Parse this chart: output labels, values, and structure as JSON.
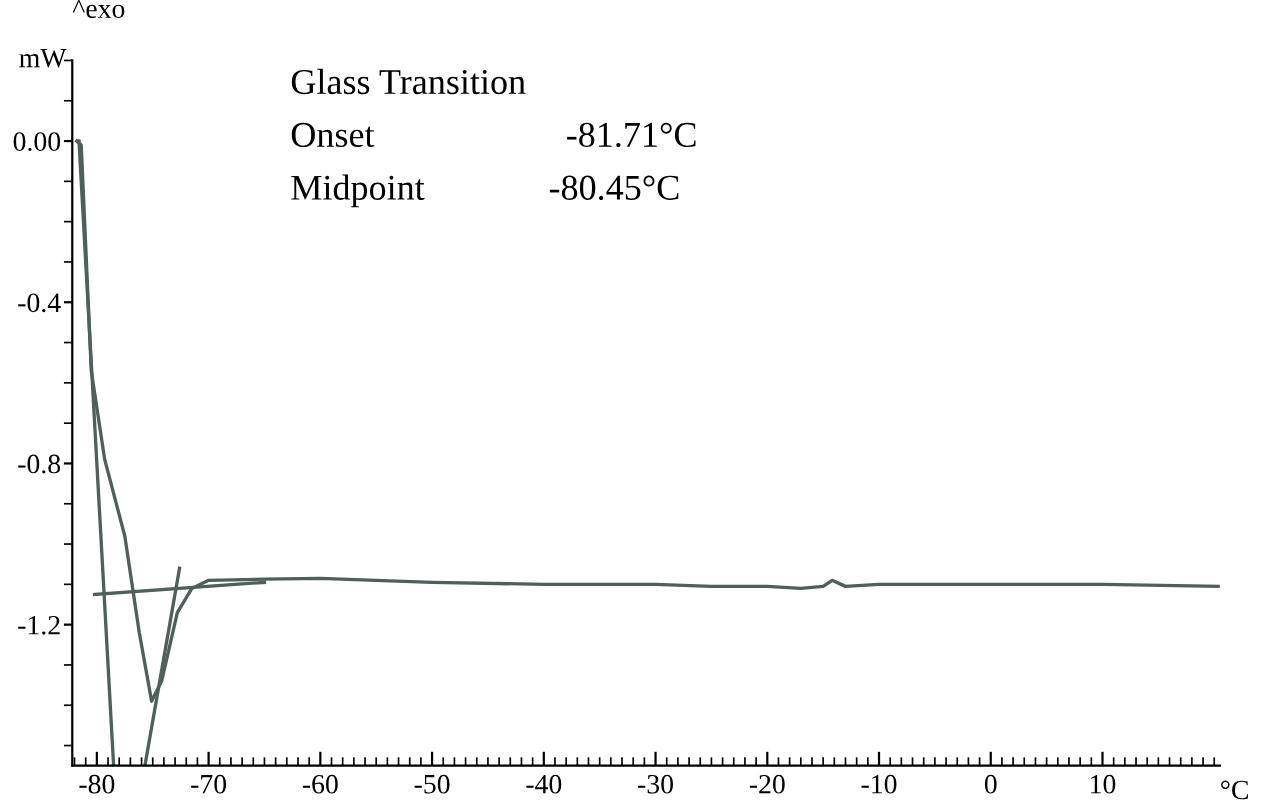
{
  "chart_data": {
    "type": "line",
    "xlabel": "°C",
    "ylabel": "mW",
    "title": "^exo",
    "xlim": [
      -82.2,
      20.5
    ],
    "xticks": [
      -80,
      -70,
      -60,
      -50,
      -40,
      -30,
      -20,
      -10,
      0,
      10
    ],
    "ylim": [
      -1.55,
      0.2
    ],
    "yticks": [
      {
        "value": 0,
        "label": "0.00"
      },
      -0.4,
      -0.8,
      -1.2
    ],
    "grid": false,
    "legend": false,
    "marker": "none",
    "line_style": "solid",
    "annotations": [
      "Glass Transition",
      "Onset",
      "-81.71°C",
      "Midpoint",
      "-80.45°C"
    ],
    "series": [
      {
        "color": "#4f5f5c",
        "x": [
          -81.8,
          -81.4,
          -80.5,
          -79.3,
          -77.5,
          -76.2,
          -75.1,
          -74.2,
          -72.8,
          -71.5,
          -70,
          -65,
          -60,
          -50,
          -40,
          -30,
          -25,
          -20,
          -17,
          -15,
          -14.2,
          -13,
          -10,
          0,
          10,
          20.5
        ],
        "values": [
          0.0,
          -0.01,
          -0.57,
          -0.79,
          -0.98,
          -1.22,
          -1.39,
          -1.34,
          -1.17,
          -1.11,
          -1.09,
          -1.087,
          -1.085,
          -1.095,
          -1.1,
          -1.1,
          -1.105,
          -1.105,
          -1.11,
          -1.105,
          -1.09,
          -1.105,
          -1.1,
          -1.1,
          -1.1,
          -1.105
        ]
      },
      {
        "color": "#4f5f5c",
        "x": [
          -80.2,
          -65
        ],
        "values": [
          -1.125,
          -1.095
        ]
      },
      {
        "color": "#4f5f5c",
        "x": [
          -81.6,
          -78.5
        ],
        "values": [
          0.0,
          -1.55
        ]
      },
      {
        "color": "#4f5f5c",
        "x": [
          -75.7,
          -72.6
        ],
        "values": [
          -1.55,
          -1.06
        ]
      }
    ]
  }
}
